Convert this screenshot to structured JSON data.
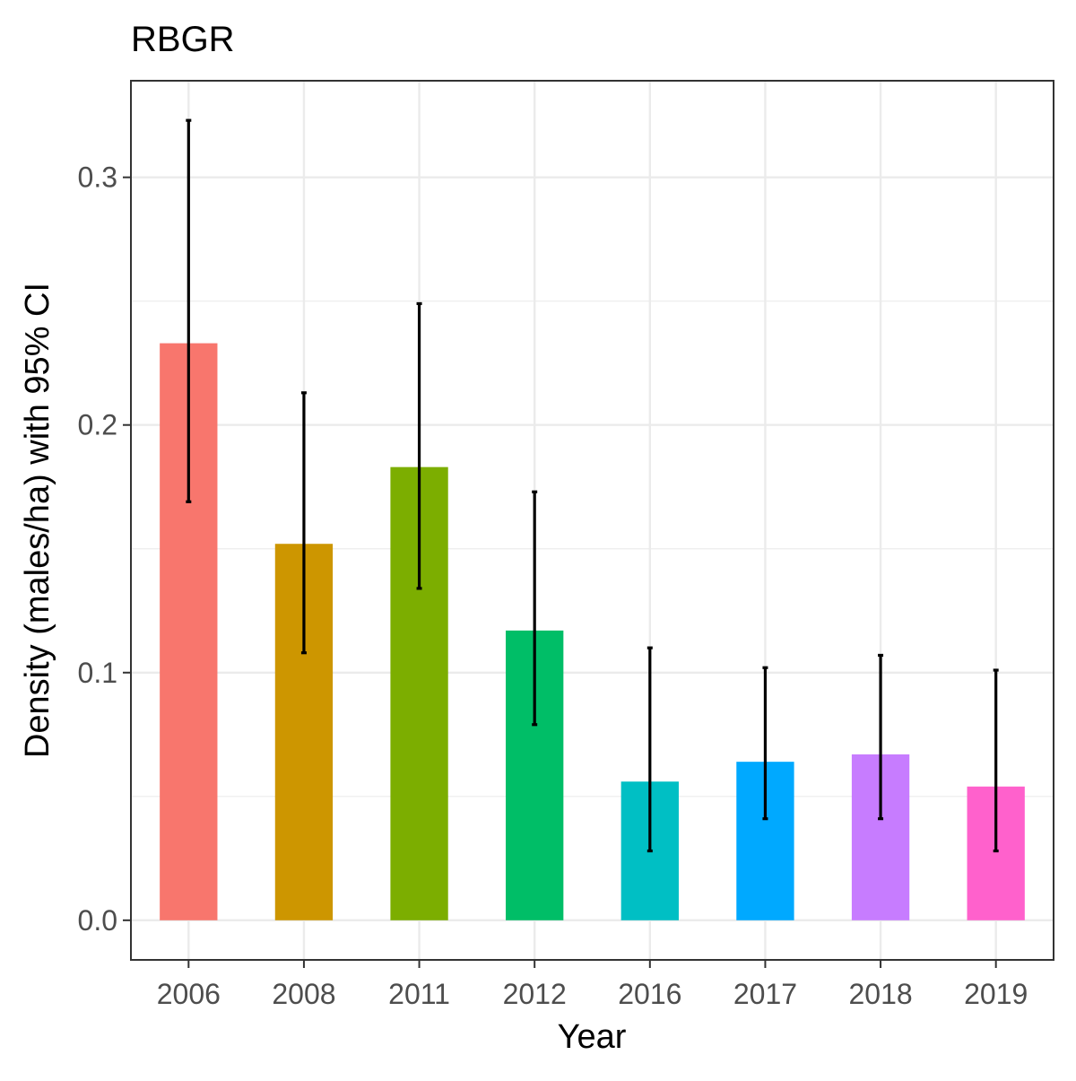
{
  "chart_data": {
    "type": "bar",
    "title": "RBGR",
    "xlabel": "Year",
    "ylabel": "Density (males/ha) with 95% CI",
    "categories": [
      "2006",
      "2008",
      "2011",
      "2012",
      "2016",
      "2017",
      "2018",
      "2019"
    ],
    "values": [
      0.233,
      0.152,
      0.183,
      0.117,
      0.056,
      0.064,
      0.067,
      0.054
    ],
    "ci_lower": [
      0.169,
      0.108,
      0.134,
      0.079,
      0.028,
      0.041,
      0.041,
      0.028
    ],
    "ci_upper": [
      0.323,
      0.213,
      0.249,
      0.173,
      0.11,
      0.102,
      0.107,
      0.101
    ],
    "colors": [
      "#F8766D",
      "#CD9600",
      "#7CAE00",
      "#00BE67",
      "#00BFC4",
      "#00A9FF",
      "#C77CFF",
      "#FF61CC"
    ],
    "ylim": [
      -0.016,
      0.339
    ],
    "yticks": [
      "0.0",
      "0.1",
      "0.2",
      "0.3"
    ],
    "ytick_values": [
      0,
      0.1,
      0.2,
      0.3
    ],
    "grid": true,
    "legend": "none"
  }
}
